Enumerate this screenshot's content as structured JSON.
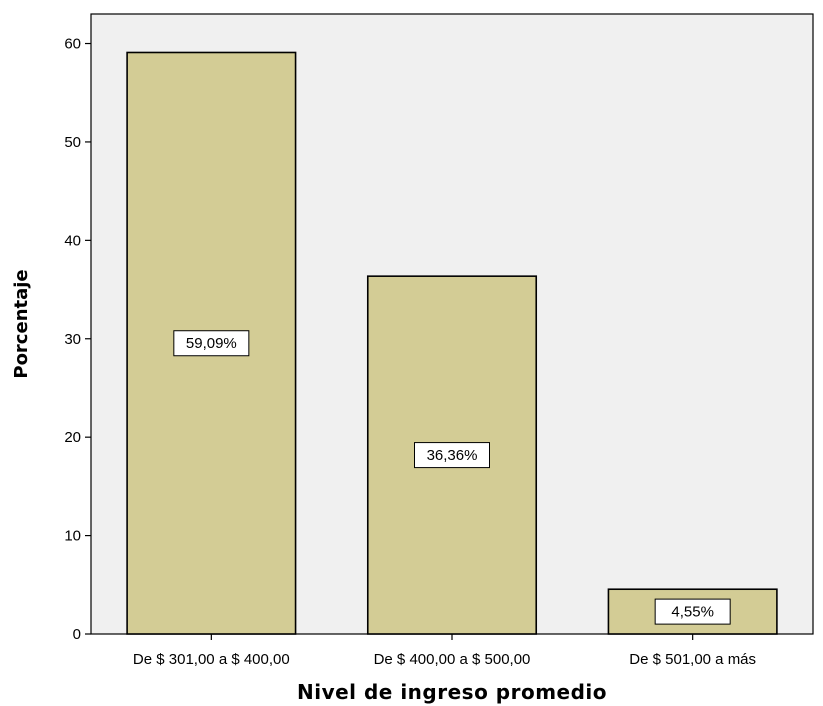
{
  "chart_data": {
    "type": "bar",
    "categories": [
      "De $ 301,00 a $ 400,00",
      "De $ 400,00 a $ 500,00",
      "De $ 501,00 a más"
    ],
    "values": [
      59.09,
      36.36,
      4.55
    ],
    "data_labels": [
      "59,09%",
      "36,36%",
      "4,55%"
    ],
    "xlabel": "Nivel de ingreso promedio",
    "ylabel": "Porcentaje",
    "ylim": [
      0,
      63
    ],
    "yticks": [
      0,
      10,
      20,
      30,
      40,
      50,
      60
    ],
    "ytick_labels": [
      "0",
      "10",
      "20",
      "30",
      "40",
      "50",
      "60"
    ],
    "grid": false,
    "colors": {
      "bar_fill": "#d3cc95",
      "bar_stroke": "#000000",
      "plot_background": "#f0f0f0",
      "label_box_fill": "#ffffff"
    }
  }
}
